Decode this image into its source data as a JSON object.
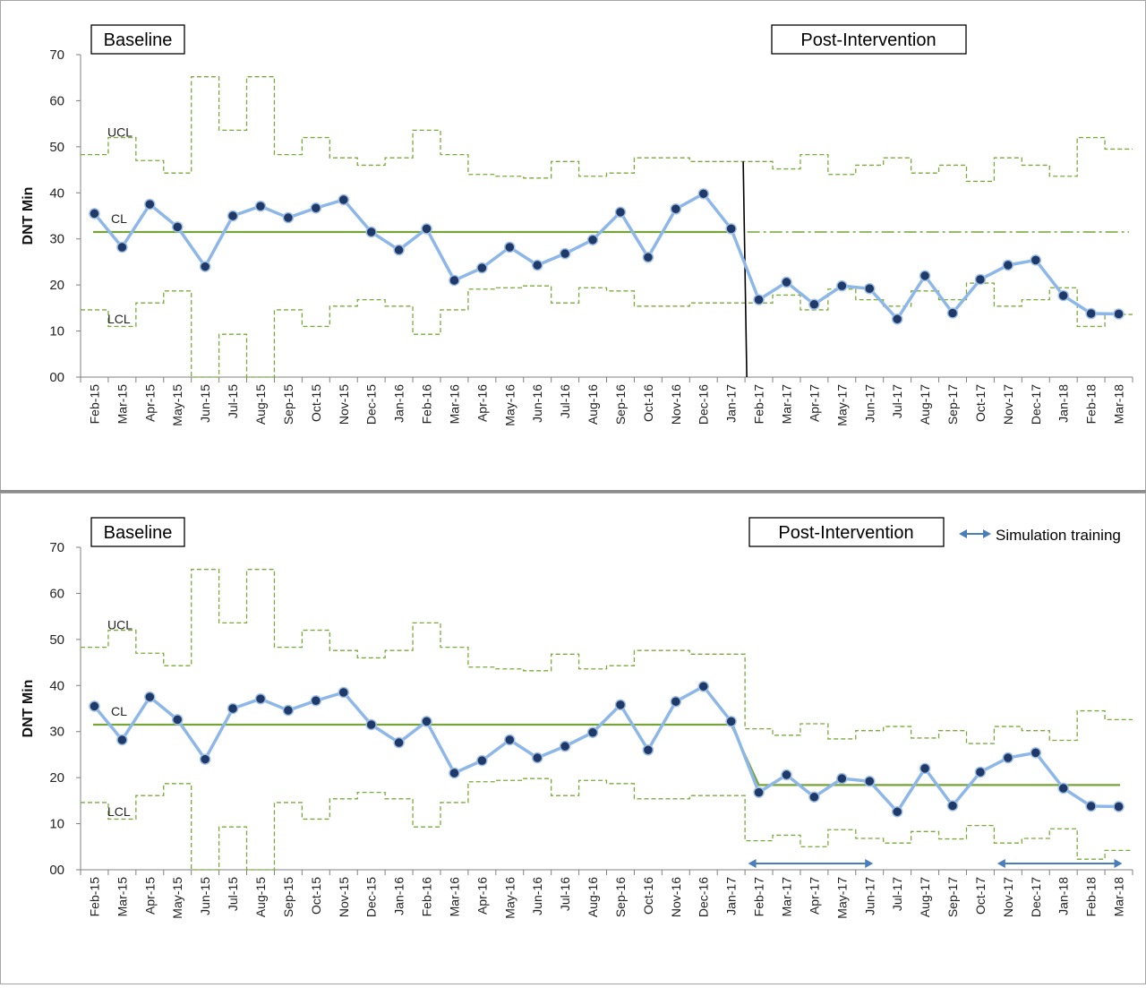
{
  "charts": [
    {
      "ylabel": "DNT Min",
      "baseline_label": "Baseline",
      "post_label": "Post-Intervention",
      "ucl_label": "UCL",
      "cl_label": "CL",
      "lcl_label": "LCL",
      "legend_label": ""
    },
    {
      "ylabel": "DNT Min",
      "baseline_label": "Baseline",
      "post_label": "Post-Intervention",
      "ucl_label": "UCL",
      "cl_label": "CL",
      "lcl_label": "LCL",
      "legend_label": "Simulation training"
    }
  ],
  "chart_data": [
    {
      "type": "line",
      "title": "",
      "ylabel": "DNT Min",
      "ylim": [
        0,
        70
      ],
      "yticks": [
        "00",
        "10",
        "20",
        "30",
        "40",
        "50",
        "60",
        "70"
      ],
      "categories": [
        "Feb-15",
        "Mar-15",
        "Apr-15",
        "May-15",
        "Jun-15",
        "Jul-15",
        "Aug-15",
        "Sep-15",
        "Oct-15",
        "Nov-15",
        "Dec-15",
        "Jan-16",
        "Feb-16",
        "Mar-16",
        "Apr-16",
        "May-16",
        "Jun-16",
        "Jul-16",
        "Aug-16",
        "Sep-16",
        "Oct-16",
        "Nov-16",
        "Dec-16",
        "Jan-17",
        "Feb-17",
        "Mar-17",
        "Apr-17",
        "May-17",
        "Jun-17",
        "Jul-17",
        "Aug-17",
        "Sep-17",
        "Oct-17",
        "Nov-17",
        "Dec-17",
        "Jan-18",
        "Feb-18",
        "Mar-18"
      ],
      "values": [
        35.5,
        28.2,
        37.5,
        32.6,
        24,
        35,
        37.1,
        34.6,
        36.7,
        38.5,
        31.5,
        27.6,
        32.2,
        21,
        23.7,
        28.2,
        24.3,
        26.8,
        29.8,
        35.8,
        26,
        36.5,
        39.8,
        32.2,
        16.8,
        20.6,
        15.8,
        19.8,
        19.2,
        12.6,
        22,
        13.9,
        21.2,
        24.3,
        25.4,
        17.7,
        13.8,
        13.7
      ],
      "ucl": [
        48.3,
        52,
        47,
        44.3,
        65.2,
        53.6,
        65.2,
        48.3,
        52,
        47.6,
        46,
        47.6,
        53.6,
        48.3,
        44,
        43.6,
        43.2,
        46.8,
        43.6,
        44.3,
        47.6,
        47.6,
        46.8,
        46.8,
        46.8,
        45.2,
        48.3,
        44,
        46,
        47.6,
        44.3,
        46,
        42.5,
        47.6,
        46,
        43.6,
        52,
        49.5
      ],
      "lcl": [
        14.6,
        11,
        16.1,
        18.7,
        -2,
        9.3,
        -2,
        14.6,
        11,
        15.4,
        16.8,
        15.4,
        9.3,
        14.6,
        19.1,
        19.4,
        19.8,
        16.1,
        19.4,
        18.7,
        15.4,
        15.4,
        16.1,
        16.1,
        16.1,
        17.8,
        14.6,
        19.1,
        16.8,
        15.4,
        18.7,
        16.8,
        20.4,
        15.4,
        16.8,
        19.4,
        11,
        13.6
      ],
      "cl_baseline": 31.5,
      "cl_post": 31.5,
      "phase_split_after": "Jan-17",
      "phase_labels": [
        "Baseline",
        "Post-Intervention"
      ],
      "annotations": [
        "UCL",
        "CL",
        "LCL"
      ]
    },
    {
      "type": "line",
      "title": "",
      "ylabel": "DNT Min",
      "ylim": [
        0,
        70
      ],
      "yticks": [
        "00",
        "10",
        "20",
        "30",
        "40",
        "50",
        "60",
        "70"
      ],
      "categories": [
        "Feb-15",
        "Mar-15",
        "Apr-15",
        "May-15",
        "Jun-15",
        "Jul-15",
        "Aug-15",
        "Sep-15",
        "Oct-15",
        "Nov-15",
        "Dec-15",
        "Jan-16",
        "Feb-16",
        "Mar-16",
        "Apr-16",
        "May-16",
        "Jun-16",
        "Jul-16",
        "Aug-16",
        "Sep-16",
        "Oct-16",
        "Nov-16",
        "Dec-16",
        "Jan-17",
        "Feb-17",
        "Mar-17",
        "Apr-17",
        "May-17",
        "Jun-17",
        "Jul-17",
        "Aug-17",
        "Sep-17",
        "Oct-17",
        "Nov-17",
        "Dec-17",
        "Jan-18",
        "Feb-18",
        "Mar-18"
      ],
      "values": [
        35.5,
        28.2,
        37.5,
        32.6,
        24,
        35,
        37.1,
        34.6,
        36.7,
        38.5,
        31.5,
        27.6,
        32.2,
        21,
        23.7,
        28.2,
        24.3,
        26.8,
        29.8,
        35.8,
        26,
        36.5,
        39.8,
        32.2,
        16.8,
        20.6,
        15.8,
        19.8,
        19.2,
        12.6,
        22,
        13.9,
        21.2,
        24.3,
        25.4,
        17.7,
        13.8,
        13.7
      ],
      "ucl": [
        48.3,
        52,
        47,
        44.3,
        65.2,
        53.6,
        65.2,
        48.3,
        52,
        47.6,
        46,
        47.6,
        53.6,
        48.3,
        44,
        43.6,
        43.2,
        46.8,
        43.6,
        44.3,
        47.6,
        47.6,
        46.8,
        46.8,
        30.6,
        29.2,
        31.7,
        28.4,
        30.2,
        31.1,
        28.6,
        30.2,
        27.4,
        31.1,
        30.2,
        28.1,
        34.5,
        32.6
      ],
      "lcl": [
        14.6,
        11,
        16.1,
        18.7,
        -2,
        9.3,
        -2,
        14.6,
        11,
        15.4,
        16.8,
        15.4,
        9.3,
        14.6,
        19.1,
        19.4,
        19.8,
        16.1,
        19.4,
        18.7,
        15.4,
        15.4,
        16.1,
        16.1,
        6.3,
        7.5,
        5,
        8.7,
        6.8,
        5.8,
        8.3,
        6.7,
        9.6,
        5.8,
        6.8,
        8.9,
        2.3,
        4.2
      ],
      "cl_baseline": 31.5,
      "cl_post": 18.4,
      "phase_split_after": "Jan-17",
      "phase_labels": [
        "Baseline",
        "Post-Intervention"
      ],
      "annotations": [
        "UCL",
        "CL",
        "LCL"
      ],
      "training_periods": [
        [
          "Feb-17",
          "Jun-17"
        ],
        [
          "Nov-17",
          "Mar-18"
        ]
      ],
      "legend": [
        "Simulation training"
      ]
    }
  ]
}
